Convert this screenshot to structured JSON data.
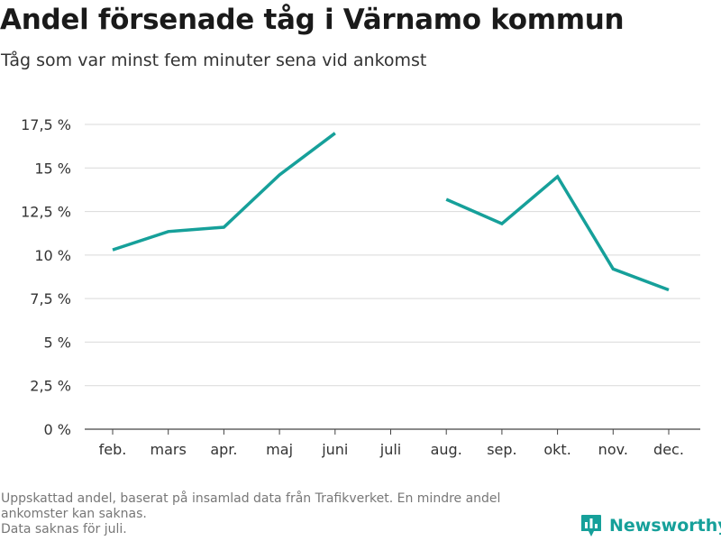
{
  "header": {
    "title": "Andel försenade tåg i Värnamo kommun",
    "subtitle": "Tåg som var minst fem minuter sena vid ankomst"
  },
  "chart_data": {
    "type": "line",
    "title": "Andel försenade tåg i Värnamo kommun",
    "subtitle": "Tåg som var minst fem minuter sena vid ankomst",
    "xlabel": "",
    "ylabel": "",
    "categories": [
      "feb.",
      "mars",
      "apr.",
      "maj",
      "juni",
      "juli",
      "aug.",
      "sep.",
      "okt.",
      "nov.",
      "dec."
    ],
    "series": [
      {
        "values": [
          10.3,
          11.35,
          11.6,
          14.6,
          17.0,
          null,
          13.2,
          11.8,
          14.5,
          9.2,
          8.0
        ]
      }
    ],
    "yticks": [
      0,
      2.5,
      5,
      7.5,
      10,
      12.5,
      15,
      17.5
    ],
    "ytick_labels": [
      "0 %",
      "2,5 %",
      "5 %",
      "7,5 %",
      "10 %",
      "12,5 %",
      "15 %",
      "17,5 %"
    ],
    "ylim": [
      0,
      17.5
    ],
    "grid": "horizontal",
    "legend": "none",
    "line_color": "#16a09a"
  },
  "footer": {
    "note_line1": "Uppskattad andel, baserat på insamlad data från Trafikverket. En mindre andel",
    "note_line2": "ankomster kan saknas.",
    "note_line3": "Data saknas för juli.",
    "brand": "Newsworthy",
    "brand_color": "#16a09a",
    "brand_icon": "bar-chart-pin-icon"
  }
}
